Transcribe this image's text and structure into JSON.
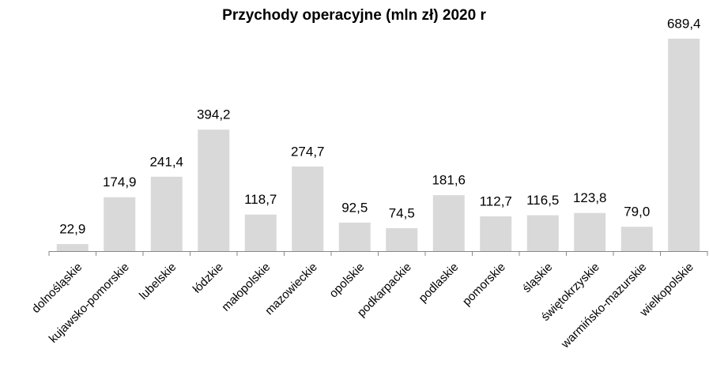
{
  "chart_data": {
    "type": "bar",
    "title": "Przychody operacyjne (mln zł)  2020 r",
    "categories": [
      "dolnośląskie",
      "kujawsko-pomorskie",
      "lubelskie",
      "łódzkie",
      "małopolskie",
      "mazowieckie",
      "opolskie",
      "podkarpackie",
      "podlaskie",
      "pomorskie",
      "śląskie",
      "świętokrzyskie",
      "warmińsko-mazurskie",
      "wielkopolskie"
    ],
    "values": [
      22.9,
      174.9,
      241.4,
      394.2,
      118.7,
      274.7,
      92.5,
      74.5,
      181.6,
      112.7,
      116.5,
      123.8,
      79.0,
      689.4
    ],
    "value_labels": [
      "22,9",
      "174,9",
      "241,4",
      "394,2",
      "118,7",
      "274,7",
      "92,5",
      "74,5",
      "181,6",
      "112,7",
      "116,5",
      "123,8",
      "79,0",
      "689,4"
    ],
    "color": "#d9d9d9"
  }
}
